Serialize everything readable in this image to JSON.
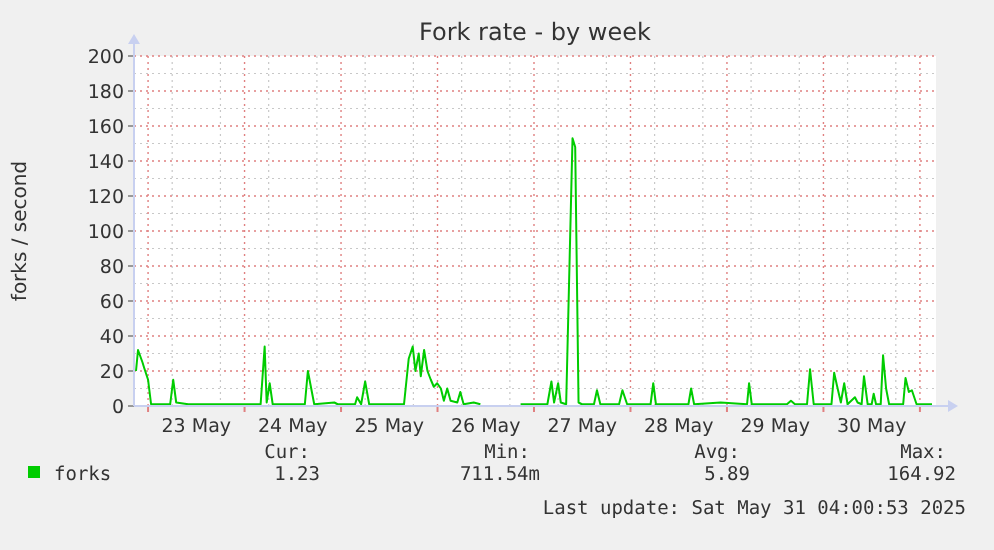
{
  "chart_data": {
    "type": "line",
    "title": "Fork rate - by week",
    "ylabel": "forks / second",
    "x": [
      "2025-05-22T21:00",
      "2025-05-22T21:30",
      "2025-05-22T22:36",
      "2025-05-22T23:00",
      "2025-05-23T00:00",
      "2025-05-23T00:45",
      "2025-05-23T05:30",
      "2025-05-23T06:15",
      "2025-05-23T07:00",
      "2025-05-23T10:00",
      "2025-05-24T04:00",
      "2025-05-24T05:00",
      "2025-05-24T05:30",
      "2025-05-24T06:15",
      "2025-05-24T07:00",
      "2025-05-24T09:00",
      "2025-05-24T15:00",
      "2025-05-24T15:45",
      "2025-05-24T17:20",
      "2025-05-24T22:20",
      "2025-05-24T23:10",
      "2025-05-25T03:30",
      "2025-05-25T04:00",
      "2025-05-25T05:00",
      "2025-05-25T06:00",
      "2025-05-25T07:00",
      "2025-05-25T15:40",
      "2025-05-25T16:50",
      "2025-05-25T17:50",
      "2025-05-25T18:30",
      "2025-05-25T19:20",
      "2025-05-25T19:50",
      "2025-05-25T20:40",
      "2025-05-25T21:30",
      "2025-05-25T22:20",
      "2025-05-25T23:05",
      "2025-05-25T23:55",
      "2025-05-26T00:50",
      "2025-05-26T01:35",
      "2025-05-26T02:25",
      "2025-05-26T03:15",
      "2025-05-26T04:55",
      "2025-05-26T05:40",
      "2025-05-26T06:30",
      "2025-05-26T09:00",
      "2025-05-26T10:40",
      "2025-05-26T14:00",
      "2025-05-26T20:40",
      "2025-05-27T03:20",
      "2025-05-27T04:20",
      "2025-05-27T05:00",
      "2025-05-27T06:00",
      "2025-05-27T06:40",
      "2025-05-27T08:00",
      "2025-05-27T09:35",
      "2025-05-27T10:15",
      "2025-05-27T11:05",
      "2025-05-27T11:55",
      "2025-05-27T14:55",
      "2025-05-27T15:40",
      "2025-05-27T16:30",
      "2025-05-27T21:10",
      "2025-05-27T22:00",
      "2025-05-27T23:10",
      "2025-05-28T05:00",
      "2025-05-28T05:40",
      "2025-05-28T06:20",
      "2025-05-28T14:25",
      "2025-05-28T15:05",
      "2025-05-28T15:50",
      "2025-05-28T22:25",
      "2025-05-29T05:00",
      "2025-05-29T05:30",
      "2025-05-29T06:10",
      "2025-05-29T14:55",
      "2025-05-29T15:55",
      "2025-05-29T16:55",
      "2025-05-29T19:55",
      "2025-05-29T20:40",
      "2025-05-29T21:35",
      "2025-05-30T02:00",
      "2025-05-30T02:40",
      "2025-05-30T03:20",
      "2025-05-30T04:20",
      "2025-05-30T05:10",
      "2025-05-30T06:00",
      "2025-05-30T07:50",
      "2025-05-30T08:30",
      "2025-05-30T09:30",
      "2025-05-30T10:05",
      "2025-05-30T11:00",
      "2025-05-30T12:00",
      "2025-05-30T12:30",
      "2025-05-30T13:05",
      "2025-05-30T14:15",
      "2025-05-30T14:50",
      "2025-05-30T15:35",
      "2025-05-30T16:20",
      "2025-05-30T19:50",
      "2025-05-30T20:25",
      "2025-05-30T21:15",
      "2025-05-30T22:00",
      "2025-05-30T23:10",
      "2025-05-31T03:00"
    ],
    "series": [
      {
        "name": "forks",
        "color": "#00cc00",
        "values": [
          20,
          32,
          25,
          22,
          15,
          1,
          1,
          15,
          2,
          1,
          1,
          34,
          2,
          13,
          1,
          1,
          1,
          20,
          1,
          2,
          1,
          1,
          5,
          1,
          14,
          1,
          1,
          27,
          34,
          20,
          30,
          17,
          32,
          20,
          15,
          11,
          13,
          10,
          3,
          10,
          3,
          2,
          8,
          1,
          2,
          1,
          null,
          1,
          1,
          14,
          2,
          13,
          2,
          1,
          153,
          148,
          2,
          1,
          1,
          9,
          1,
          1,
          9,
          1,
          1,
          13,
          1,
          1,
          10,
          1,
          2,
          1,
          13,
          1,
          1,
          3,
          1,
          1,
          21,
          1,
          1,
          19,
          12,
          2,
          13,
          1,
          5,
          2,
          1,
          17,
          1,
          1,
          7,
          1,
          1,
          29,
          10,
          1,
          1,
          16,
          8,
          9,
          1,
          1
        ]
      }
    ],
    "xlim": [
      "2025-05-22T20:30",
      "2025-05-31T04:00"
    ],
    "xticks": [
      {
        "value": "2025-05-23T12:00",
        "label": "23 May"
      },
      {
        "value": "2025-05-24T12:00",
        "label": "24 May"
      },
      {
        "value": "2025-05-25T12:00",
        "label": "25 May"
      },
      {
        "value": "2025-05-26T12:00",
        "label": "26 May"
      },
      {
        "value": "2025-05-27T12:00",
        "label": "27 May"
      },
      {
        "value": "2025-05-28T12:00",
        "label": "28 May"
      },
      {
        "value": "2025-05-29T12:00",
        "label": "29 May"
      },
      {
        "value": "2025-05-30T12:00",
        "label": "30 May"
      }
    ],
    "ylim": [
      0,
      200
    ],
    "yticks": [
      0,
      20,
      40,
      60,
      80,
      100,
      120,
      140,
      160,
      180,
      200
    ],
    "grid": true,
    "legend": "bottom",
    "marker": "none",
    "line_style": "solid",
    "annotations": [
      "Cur:",
      "1.23",
      "Min:",
      "711.54m",
      "Avg:",
      "5.89",
      "Max:",
      "164.92",
      "Last update: Sat May 31 04:00:53 2025"
    ]
  }
}
